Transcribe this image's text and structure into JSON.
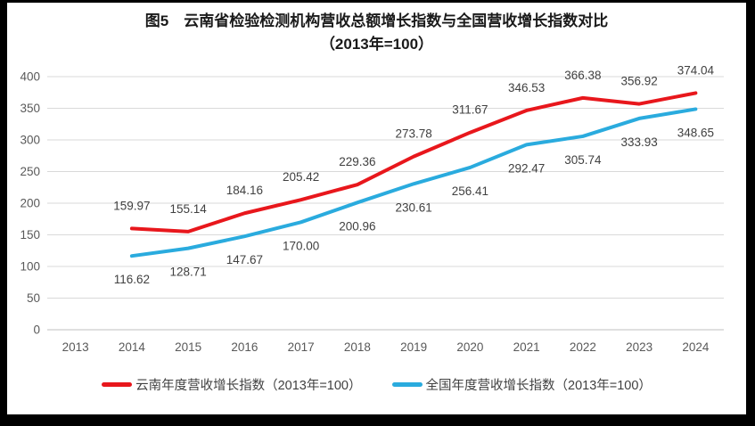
{
  "title": {
    "line1": "图5　云南省检验检测机构营收总额增长指数与全国营收增长指数对比",
    "line2": "（2013年=100）"
  },
  "chart_data": {
    "type": "line",
    "categories": [
      "2013",
      "2014",
      "2015",
      "2016",
      "2017",
      "2018",
      "2019",
      "2020",
      "2021",
      "2022",
      "2023",
      "2024"
    ],
    "series": [
      {
        "name": "云南年度营收增长指数（2013年=100）",
        "color": "#e8171c",
        "values": [
          null,
          159.97,
          155.14,
          184.16,
          205.42,
          229.36,
          273.78,
          311.67,
          346.53,
          366.38,
          356.92,
          374.04
        ],
        "label_offset": -21
      },
      {
        "name": "全国年度营收增长指数（2013年=100）",
        "color": "#2aabde",
        "values": [
          null,
          116.62,
          128.71,
          147.67,
          170.0,
          200.96,
          230.61,
          256.41,
          292.47,
          305.74,
          333.93,
          348.65
        ],
        "label_offset": 31
      }
    ],
    "ylim": [
      0,
      400
    ],
    "ytick_step": 50,
    "grid": true,
    "legend_position": "bottom",
    "label_decimals": 2,
    "colors": {
      "gridline": "#d9d9d9",
      "baseline": "#bfbfbf",
      "axis_text": "#595959",
      "data_label": "#404040"
    }
  }
}
